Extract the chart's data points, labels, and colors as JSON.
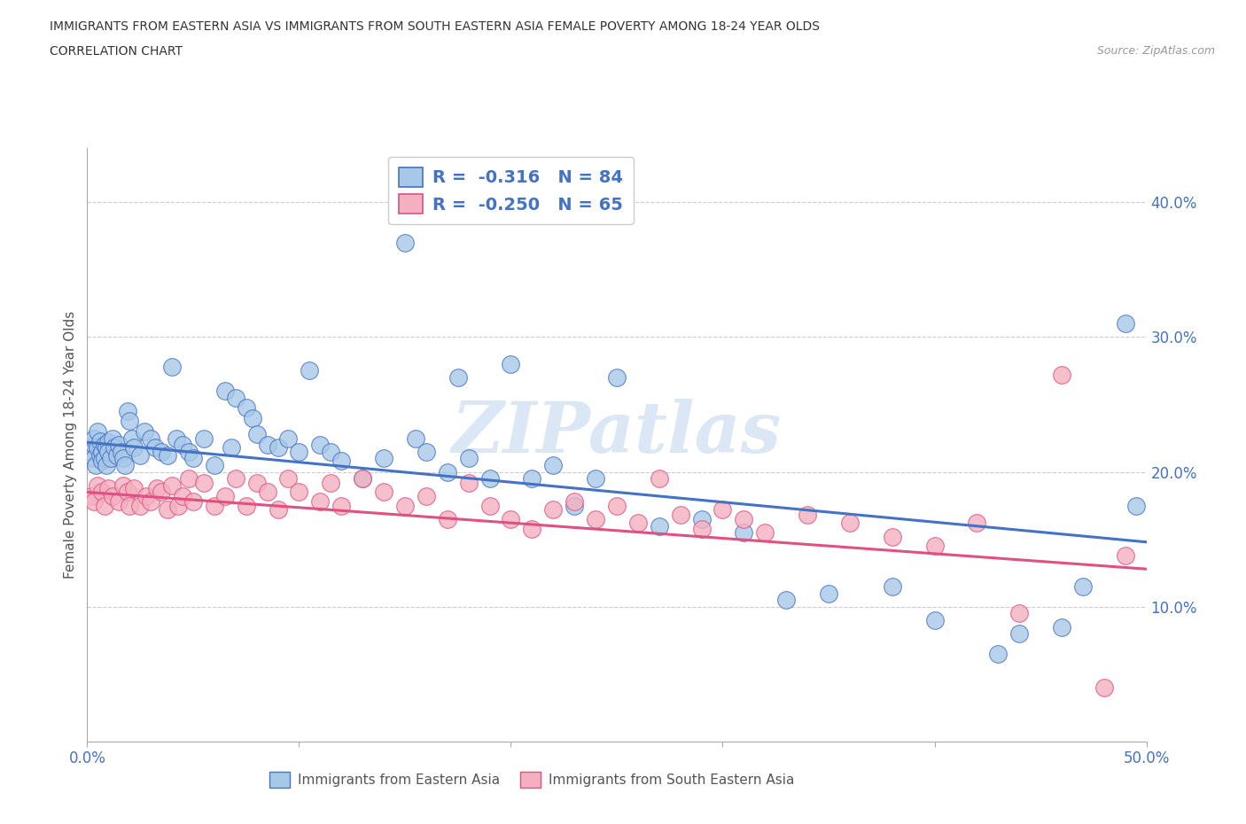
{
  "title_line1": "IMMIGRANTS FROM EASTERN ASIA VS IMMIGRANTS FROM SOUTH EASTERN ASIA FEMALE POVERTY AMONG 18-24 YEAR OLDS",
  "title_line2": "CORRELATION CHART",
  "source": "Source: ZipAtlas.com",
  "ylabel": "Female Poverty Among 18-24 Year Olds",
  "xlim": [
    0.0,
    0.5
  ],
  "ylim": [
    0.0,
    0.44
  ],
  "ytick_positions": [
    0.1,
    0.2,
    0.3,
    0.4
  ],
  "ytick_labels": [
    "10.0%",
    "20.0%",
    "30.0%",
    "40.0%"
  ],
  "color_eastern": "#a8c8e8",
  "color_southeastern": "#f4b0c0",
  "color_eastern_line": "#4472c4",
  "color_southeastern_line": "#e05080",
  "watermark": "ZIPatlas",
  "blue_line_x0": 0.0,
  "blue_line_y0": 0.222,
  "blue_line_x1": 0.5,
  "blue_line_y1": 0.148,
  "pink_line_x0": 0.0,
  "pink_line_y0": 0.185,
  "pink_line_x1": 0.5,
  "pink_line_y1": 0.128,
  "east_x": [
    0.002,
    0.003,
    0.003,
    0.003,
    0.004,
    0.005,
    0.005,
    0.006,
    0.006,
    0.007,
    0.007,
    0.008,
    0.008,
    0.009,
    0.009,
    0.01,
    0.01,
    0.011,
    0.012,
    0.013,
    0.014,
    0.015,
    0.016,
    0.017,
    0.018,
    0.019,
    0.02,
    0.021,
    0.022,
    0.025,
    0.027,
    0.03,
    0.032,
    0.035,
    0.038,
    0.04,
    0.042,
    0.045,
    0.048,
    0.05,
    0.055,
    0.06,
    0.065,
    0.068,
    0.07,
    0.075,
    0.078,
    0.08,
    0.085,
    0.09,
    0.095,
    0.1,
    0.105,
    0.11,
    0.115,
    0.12,
    0.13,
    0.14,
    0.15,
    0.155,
    0.16,
    0.17,
    0.175,
    0.18,
    0.19,
    0.2,
    0.21,
    0.22,
    0.23,
    0.24,
    0.25,
    0.27,
    0.29,
    0.31,
    0.33,
    0.35,
    0.38,
    0.4,
    0.43,
    0.44,
    0.46,
    0.47,
    0.49,
    0.495
  ],
  "east_y": [
    0.215,
    0.22,
    0.225,
    0.21,
    0.205,
    0.23,
    0.218,
    0.223,
    0.212,
    0.215,
    0.208,
    0.22,
    0.21,
    0.218,
    0.205,
    0.222,
    0.215,
    0.21,
    0.225,
    0.218,
    0.212,
    0.22,
    0.215,
    0.21,
    0.205,
    0.245,
    0.238,
    0.225,
    0.218,
    0.212,
    0.23,
    0.225,
    0.218,
    0.215,
    0.212,
    0.278,
    0.225,
    0.22,
    0.215,
    0.21,
    0.225,
    0.205,
    0.26,
    0.218,
    0.255,
    0.248,
    0.24,
    0.228,
    0.22,
    0.218,
    0.225,
    0.215,
    0.275,
    0.22,
    0.215,
    0.208,
    0.195,
    0.21,
    0.37,
    0.225,
    0.215,
    0.2,
    0.27,
    0.21,
    0.195,
    0.28,
    0.195,
    0.205,
    0.175,
    0.195,
    0.27,
    0.16,
    0.165,
    0.155,
    0.105,
    0.11,
    0.115,
    0.09,
    0.065,
    0.08,
    0.085,
    0.115,
    0.31,
    0.175
  ],
  "se_x": [
    0.002,
    0.003,
    0.005,
    0.007,
    0.008,
    0.01,
    0.012,
    0.015,
    0.017,
    0.019,
    0.02,
    0.022,
    0.025,
    0.028,
    0.03,
    0.033,
    0.035,
    0.038,
    0.04,
    0.043,
    0.045,
    0.048,
    0.05,
    0.055,
    0.06,
    0.065,
    0.07,
    0.075,
    0.08,
    0.085,
    0.09,
    0.095,
    0.1,
    0.11,
    0.115,
    0.12,
    0.13,
    0.14,
    0.15,
    0.16,
    0.17,
    0.18,
    0.19,
    0.2,
    0.21,
    0.22,
    0.23,
    0.24,
    0.25,
    0.26,
    0.27,
    0.28,
    0.29,
    0.3,
    0.31,
    0.32,
    0.34,
    0.36,
    0.38,
    0.4,
    0.42,
    0.44,
    0.46,
    0.48,
    0.49
  ],
  "se_y": [
    0.182,
    0.178,
    0.19,
    0.185,
    0.175,
    0.188,
    0.182,
    0.178,
    0.19,
    0.185,
    0.175,
    0.188,
    0.175,
    0.182,
    0.178,
    0.188,
    0.185,
    0.172,
    0.19,
    0.175,
    0.182,
    0.195,
    0.178,
    0.192,
    0.175,
    0.182,
    0.195,
    0.175,
    0.192,
    0.185,
    0.172,
    0.195,
    0.185,
    0.178,
    0.192,
    0.175,
    0.195,
    0.185,
    0.175,
    0.182,
    0.165,
    0.192,
    0.175,
    0.165,
    0.158,
    0.172,
    0.178,
    0.165,
    0.175,
    0.162,
    0.195,
    0.168,
    0.158,
    0.172,
    0.165,
    0.155,
    0.168,
    0.162,
    0.152,
    0.145,
    0.162,
    0.095,
    0.272,
    0.04,
    0.138
  ]
}
